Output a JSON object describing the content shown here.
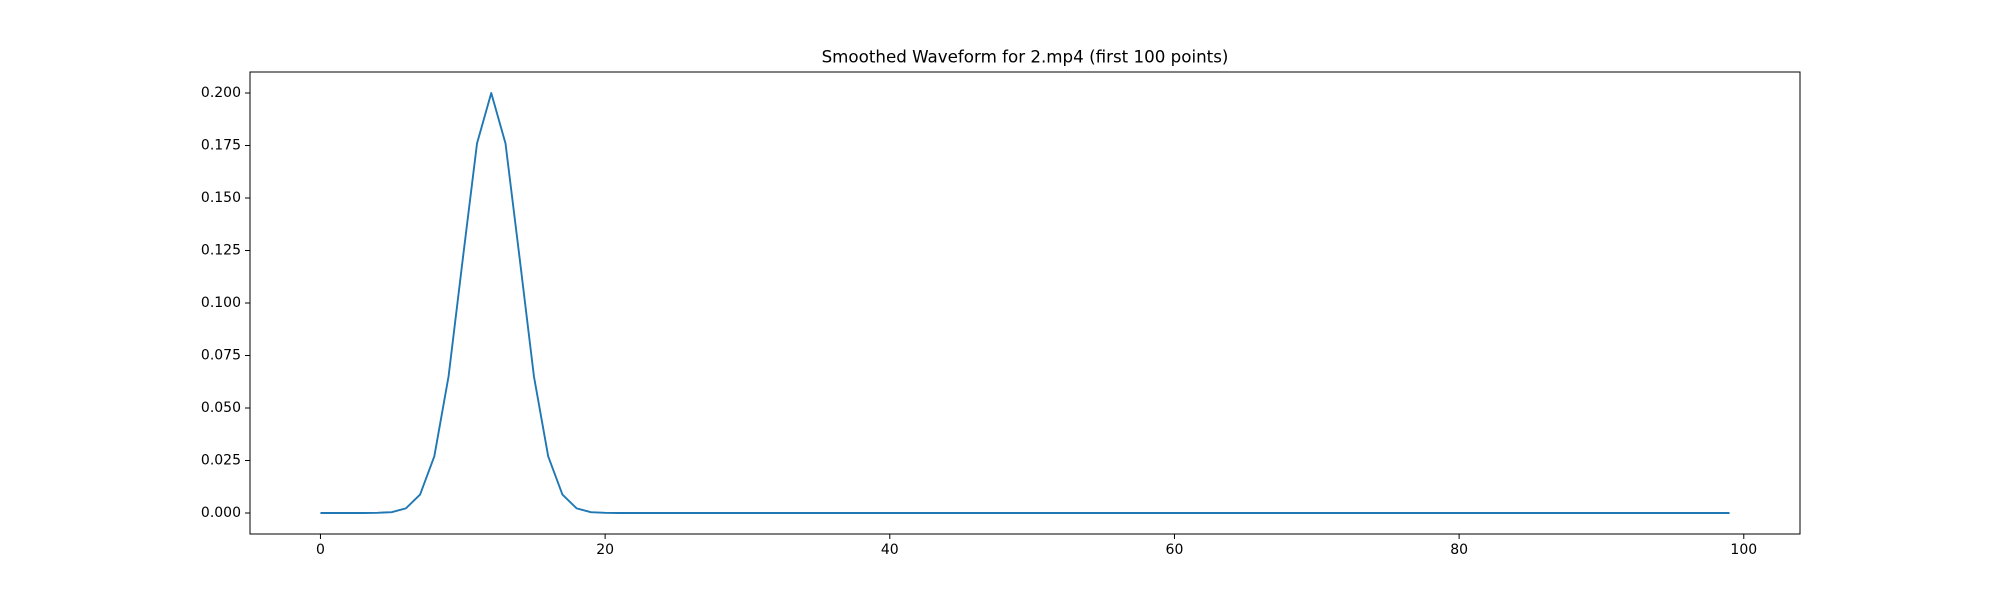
{
  "chart_data": {
    "type": "line",
    "title": "Smoothed Waveform for 2.mp4 (first 100 points)",
    "x": [
      0,
      1,
      2,
      3,
      4,
      5,
      6,
      7,
      8,
      9,
      10,
      11,
      12,
      13,
      14,
      15,
      16,
      17,
      18,
      19,
      20,
      21,
      22,
      23,
      24,
      25,
      26,
      27,
      28,
      29,
      30,
      31,
      32,
      33,
      34,
      35,
      36,
      37,
      38,
      39,
      40,
      41,
      42,
      43,
      44,
      45,
      46,
      47,
      48,
      49,
      50,
      51,
      52,
      53,
      54,
      55,
      56,
      57,
      58,
      59,
      60,
      61,
      62,
      63,
      64,
      65,
      66,
      67,
      68,
      69,
      70,
      71,
      72,
      73,
      74,
      75,
      76,
      77,
      78,
      79,
      80,
      81,
      82,
      83,
      84,
      85,
      86,
      87,
      88,
      89,
      90,
      91,
      92,
      93,
      94,
      95,
      96,
      97,
      98,
      99
    ],
    "series": [
      {
        "color": "#1f77b4",
        "values": [
          0,
          0,
          0,
          0,
          0.0001,
          0.0004,
          0.0022,
          0.0088,
          0.027,
          0.065,
          0.121,
          0.176,
          0.2,
          0.176,
          0.121,
          0.065,
          0.027,
          0.0088,
          0.0022,
          0.0004,
          0.0001,
          0,
          0,
          0,
          0,
          0,
          0,
          0,
          0,
          0,
          0,
          0,
          0,
          0,
          0,
          0,
          0,
          0,
          0,
          0,
          0,
          0,
          0,
          0,
          0,
          0,
          0,
          0,
          0,
          0,
          0,
          0,
          0,
          0,
          0,
          0,
          0,
          0,
          0,
          0,
          0,
          0,
          0,
          0,
          0,
          0,
          0,
          0,
          0,
          0,
          0,
          0,
          0,
          0,
          0,
          0,
          0,
          0,
          0,
          0,
          0,
          0,
          0,
          0,
          0,
          0,
          0,
          0,
          0,
          0,
          0,
          0,
          0,
          0,
          0,
          0,
          0,
          0,
          0,
          0
        ]
      }
    ],
    "xlim": [
      -4.95,
      103.95
    ],
    "xticks": [
      0,
      20,
      40,
      60,
      80,
      100
    ],
    "ylim": [
      -0.01,
      0.21
    ],
    "yticks": [
      {
        "value": 0,
        "label": "0.000"
      },
      {
        "value": 0.025,
        "label": "0.025"
      },
      {
        "value": 0.05,
        "label": "0.050"
      },
      {
        "value": 0.075,
        "label": "0.075"
      },
      {
        "value": 0.1,
        "label": "0.100"
      },
      {
        "value": 0.125,
        "label": "0.125"
      },
      {
        "value": 0.15,
        "label": "0.150"
      },
      {
        "value": 0.175,
        "label": "0.175"
      },
      {
        "value": 0.2,
        "label": "0.200"
      }
    ]
  }
}
